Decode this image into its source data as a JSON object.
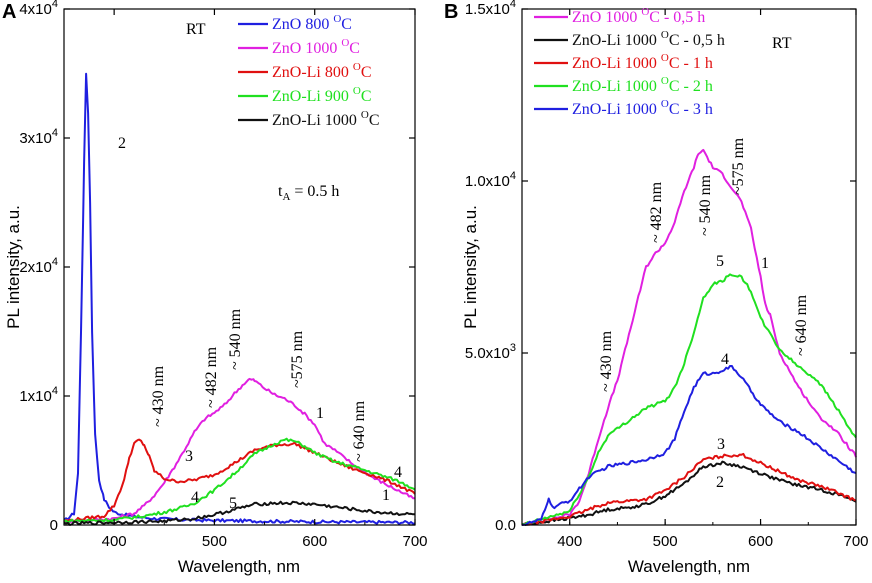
{
  "chart_data": [
    {
      "type": "line",
      "panel_label": "A",
      "xlabel": "Wavelength, nm",
      "ylabel": "PL intensity, a.u.",
      "xlim": [
        350,
        700
      ],
      "ylim": [
        0,
        40000
      ],
      "x_ticks": [
        400,
        500,
        600,
        700
      ],
      "x_tick_labels": [
        "400",
        "500",
        "600",
        "700"
      ],
      "y_ticks": [
        0,
        10000,
        20000,
        30000,
        40000
      ],
      "y_tick_labels": [
        "0",
        "1x10",
        "2x10",
        "3x10",
        "4x10"
      ],
      "y_tick_exp": [
        "",
        "4",
        "4",
        "4",
        "4"
      ],
      "rt_label": "RT",
      "time_label": "t",
      "time_sub": "A",
      "time_value": " = 0.5 h",
      "series": [
        {
          "name": "ZnO 800 ",
          "sup": "O",
          "unit": "C",
          "number": "2",
          "color": "#1f1fe0",
          "x": [
            350,
            360,
            364,
            367,
            370,
            372,
            374,
            376,
            378,
            381,
            385,
            390,
            395,
            400,
            410,
            420,
            440,
            470,
            500,
            550,
            600,
            650,
            700
          ],
          "y": [
            300,
            900,
            4000,
            15000,
            28000,
            35000,
            32000,
            25000,
            15000,
            7000,
            3500,
            2000,
            1400,
            1000,
            800,
            650,
            500,
            400,
            350,
            300,
            250,
            220,
            200
          ]
        },
        {
          "name": "ZnO 1000 ",
          "sup": "O",
          "unit": "C",
          "number": "1",
          "color": "#e020e0",
          "x": [
            350,
            400,
            420,
            430,
            440,
            450,
            460,
            470,
            480,
            490,
            500,
            510,
            520,
            530,
            535,
            540,
            550,
            560,
            570,
            580,
            590,
            600,
            610,
            620,
            640,
            660,
            680,
            700
          ],
          "y": [
            300,
            500,
            900,
            1500,
            2300,
            3300,
            4500,
            5800,
            7200,
            8200,
            8700,
            9300,
            10200,
            11000,
            11300,
            11200,
            10600,
            10100,
            9800,
            9300,
            8600,
            7800,
            6300,
            5800,
            4600,
            3600,
            2800,
            2000
          ]
        },
        {
          "name": "ZnO-Li 800 ",
          "sup": "O",
          "unit": "C",
          "number": "3",
          "color": "#e01010",
          "x": [
            350,
            390,
            400,
            410,
            415,
            420,
            425,
            430,
            435,
            440,
            450,
            460,
            470,
            480,
            490,
            500,
            520,
            540,
            560,
            580,
            600,
            620,
            640,
            660,
            680,
            700
          ],
          "y": [
            300,
            700,
            1500,
            3500,
            5200,
            6300,
            6600,
            6200,
            5300,
            4200,
            3600,
            3400,
            3400,
            3500,
            3700,
            3900,
            4800,
            5800,
            6200,
            6300,
            5600,
            4900,
            4300,
            3800,
            3200,
            2400
          ]
        },
        {
          "name": "ZnO-Li 900 ",
          "sup": "O",
          "unit": "C",
          "number": "4",
          "color": "#20e020",
          "x": [
            350,
            400,
            430,
            450,
            470,
            480,
            490,
            500,
            520,
            540,
            560,
            570,
            580,
            590,
            600,
            620,
            640,
            660,
            680,
            700
          ],
          "y": [
            300,
            400,
            700,
            1000,
            1400,
            1700,
            2200,
            2700,
            4000,
            5500,
            6300,
            6600,
            6500,
            6100,
            5600,
            4900,
            4500,
            4000,
            3500,
            2800
          ]
        },
        {
          "name": "ZnO-Li 1000 ",
          "sup": "O",
          "unit": "C",
          "number": "5",
          "color": "#111111",
          "x": [
            350,
            400,
            450,
            480,
            500,
            520,
            540,
            560,
            580,
            600,
            620,
            640,
            660,
            680,
            700
          ],
          "y": [
            100,
            200,
            300,
            500,
            800,
            1200,
            1600,
            1700,
            1700,
            1600,
            1400,
            1200,
            1000,
            900,
            800
          ]
        }
      ],
      "peak_labels": [
        "~ 430 nm",
        "~ 482 nm",
        "~ 540 nm",
        "~575 nm",
        "~ 640 nm"
      ]
    },
    {
      "type": "line",
      "panel_label": "B",
      "xlabel": "Wavelength, nm",
      "ylabel": "PL intensity, a.u.",
      "xlim": [
        350,
        700
      ],
      "ylim": [
        0,
        15000
      ],
      "x_ticks": [
        400,
        500,
        600,
        700
      ],
      "x_tick_labels": [
        "400",
        "500",
        "600",
        "700"
      ],
      "y_ticks": [
        0,
        5000,
        10000,
        15000
      ],
      "y_tick_labels": [
        "0.0",
        "5.0x10",
        "1.0x10",
        "1.5x10"
      ],
      "y_tick_exp": [
        "",
        "3",
        "4",
        "4"
      ],
      "rt_label": "RT",
      "series": [
        {
          "name": "ZnO 1000 ",
          "sup": "O",
          "unit": "C - 0,5 h",
          "number": "1",
          "color": "#e020e0",
          "x": [
            350,
            400,
            410,
            420,
            430,
            440,
            450,
            460,
            470,
            480,
            490,
            500,
            510,
            520,
            530,
            535,
            540,
            550,
            560,
            570,
            580,
            590,
            600,
            605,
            610,
            620,
            640,
            660,
            680,
            700
          ],
          "y": [
            0,
            300,
            700,
            1500,
            2500,
            3400,
            4200,
            5300,
            6400,
            7500,
            7900,
            8200,
            8800,
            9700,
            10400,
            10800,
            10900,
            10400,
            10200,
            9800,
            9400,
            8600,
            7200,
            6400,
            6100,
            5000,
            4000,
            3200,
            2700,
            2000
          ]
        },
        {
          "name": "ZnO-Li 1000 ",
          "sup": "O",
          "unit": "C - 0,5 h",
          "number": "2",
          "color": "#111111",
          "x": [
            350,
            400,
            420,
            440,
            460,
            480,
            500,
            520,
            540,
            560,
            580,
            600,
            620,
            640,
            660,
            680,
            700
          ],
          "y": [
            0,
            200,
            300,
            450,
            500,
            600,
            850,
            1200,
            1700,
            1800,
            1700,
            1500,
            1300,
            1150,
            1050,
            900,
            700
          ]
        },
        {
          "name": "ZnO-Li 1000 ",
          "sup": "O",
          "unit": "C - 1 h",
          "number": "3",
          "color": "#e01010",
          "x": [
            350,
            400,
            420,
            440,
            460,
            480,
            500,
            520,
            540,
            560,
            580,
            600,
            620,
            640,
            660,
            680,
            700
          ],
          "y": [
            0,
            250,
            450,
            650,
            700,
            750,
            1000,
            1400,
            1900,
            2000,
            2050,
            1800,
            1550,
            1300,
            1150,
            950,
            700
          ]
        },
        {
          "name": "ZnO-Li 1000 ",
          "sup": "O",
          "unit": "C - 2 h",
          "number": "5",
          "color": "#20e020",
          "x": [
            350,
            400,
            420,
            430,
            440,
            450,
            460,
            470,
            480,
            490,
            500,
            510,
            520,
            530,
            540,
            550,
            560,
            570,
            580,
            590,
            600,
            620,
            640,
            660,
            680,
            700
          ],
          "y": [
            0,
            400,
            1400,
            2100,
            2600,
            2800,
            3000,
            3200,
            3400,
            3500,
            3600,
            4000,
            4700,
            5600,
            6600,
            7000,
            7100,
            7300,
            7200,
            6800,
            6000,
            5100,
            4600,
            4200,
            3400,
            2500
          ]
        },
        {
          "name": "ZnO-Li 1000 ",
          "sup": "O",
          "unit": "C - 3 h",
          "number": "4",
          "color": "#1f1fe0",
          "x": [
            350,
            370,
            375,
            378,
            382,
            390,
            400,
            420,
            440,
            460,
            480,
            500,
            510,
            520,
            530,
            540,
            550,
            560,
            570,
            580,
            590,
            600,
            620,
            640,
            660,
            680,
            700
          ],
          "y": [
            0,
            150,
            500,
            800,
            500,
            600,
            700,
            1400,
            1700,
            1800,
            1900,
            2100,
            2500,
            3300,
            4000,
            4400,
            4400,
            4500,
            4600,
            4300,
            3900,
            3500,
            3000,
            2700,
            2300,
            1900,
            1500
          ]
        }
      ],
      "peak_labels": [
        "~ 430 nm",
        "~ 482 nm",
        "~ 540 nm",
        "~575 nm",
        "~ 640 nm"
      ]
    }
  ]
}
